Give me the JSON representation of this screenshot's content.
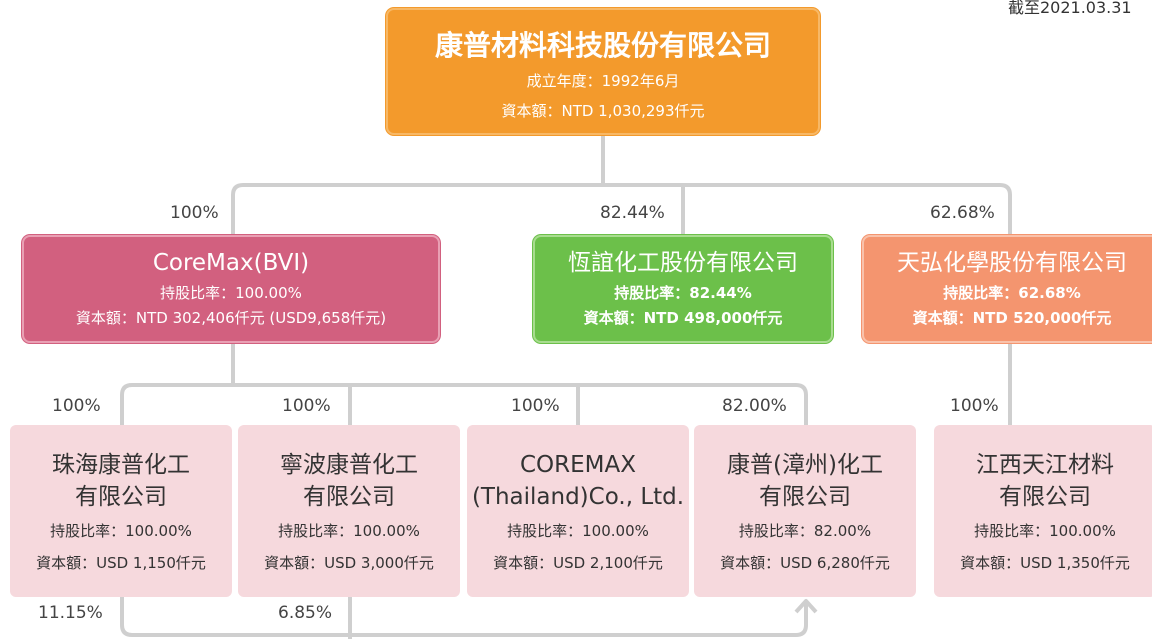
{
  "date": "截至2021.03.31",
  "root": {
    "name": "康普材料科技股份有限公司",
    "lines": [
      "成立年度：1992年6月",
      "資本額：NTD 1,030,293仟元"
    ]
  },
  "subsidiaries": [
    {
      "share": "100%",
      "name": "CoreMax(BVI)",
      "lines": [
        "持股比率：100.00%",
        "資本額：NTD 302,406仟元 (USD9,658仟元)"
      ]
    },
    {
      "share": "82.44%",
      "name": "恆誼化工股份有限公司",
      "lines": [
        "持股比率：82.44%",
        "資本額：NTD 498,000仟元"
      ]
    },
    {
      "share": "62.68%",
      "name": "天弘化學股份有限公司",
      "lines": [
        "持股比率：62.68%",
        "資本額：NTD 520,000仟元"
      ]
    }
  ],
  "affiliates": [
    {
      "share": "100%",
      "name": [
        "珠海康普化工",
        "有限公司"
      ],
      "lines": [
        "持股比率：100.00%",
        "資本額：USD 1,150仟元"
      ]
    },
    {
      "share": "100%",
      "name": [
        "寧波康普化工",
        "有限公司"
      ],
      "lines": [
        "持股比率：100.00%",
        "資本額：USD 3,000仟元"
      ]
    },
    {
      "share": "100%",
      "name": [
        "COREMAX",
        "(Thailand)Co., Ltd."
      ],
      "lines": [
        "持股比率：100.00%",
        "資本額：USD 2,100仟元"
      ]
    },
    {
      "share": "82.00%",
      "name": [
        "康普(漳州)化工",
        "有限公司"
      ],
      "lines": [
        "持股比率：82.00%",
        "資本額：USD 6,280仟元"
      ]
    },
    {
      "share": "100%",
      "name": [
        "江西天江材料",
        "有限公司"
      ],
      "lines": [
        "持股比率：100.00%",
        "資本額：USD 1,350仟元"
      ]
    }
  ],
  "cross_holdings": [
    "11.15%",
    "6.85%"
  ]
}
